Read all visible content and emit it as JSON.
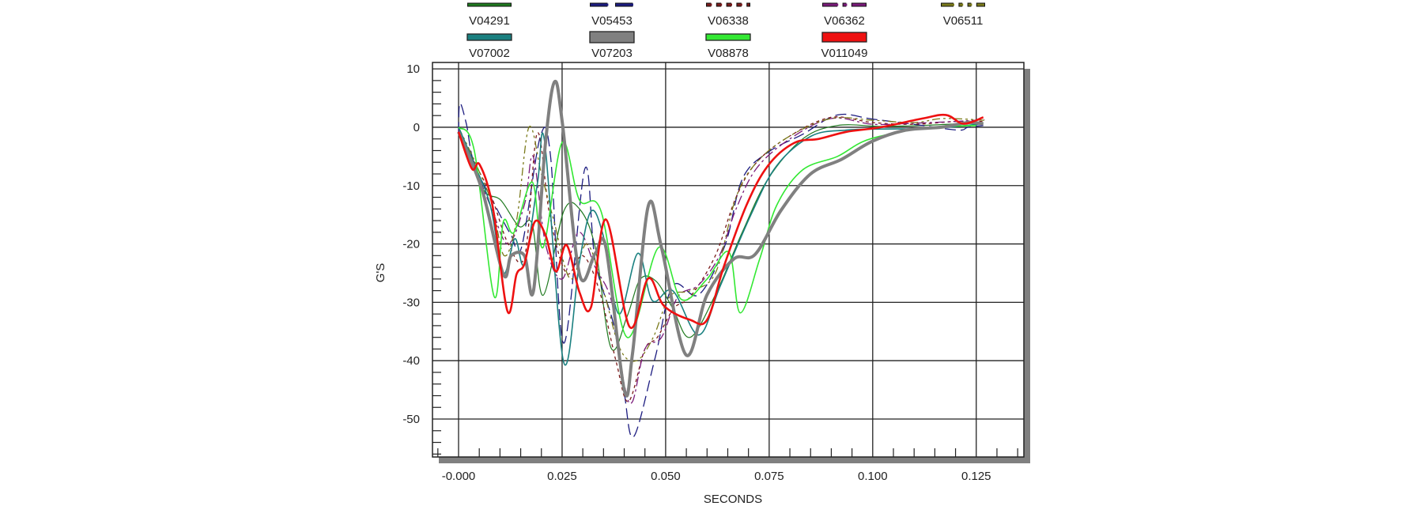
{
  "chart_data": {
    "type": "line",
    "title": "",
    "xlabel": "SECONDS",
    "ylabel": "G'S",
    "xlim": [
      -0.0063,
      0.1365
    ],
    "ylim": [
      -56.5,
      11.1
    ],
    "x_ticks": [
      0,
      0.025,
      0.05,
      0.075,
      0.1,
      0.125
    ],
    "x_tick_labels": [
      "-0.000",
      "0.025",
      "0.050",
      "0.075",
      "0.100",
      "0.125"
    ],
    "y_ticks": [
      10,
      0,
      -10,
      -20,
      -30,
      -40,
      -50
    ],
    "y_tick_labels": [
      "10",
      "0",
      "-10",
      "-20",
      "-30",
      "-40",
      "-50"
    ],
    "grid": true,
    "legend_position": "top",
    "series": [
      {
        "name": "V04291",
        "color": "#1f7a1f",
        "style": "solid-thin",
        "x": [
          0,
          0.0057,
          0.0102,
          0.0146,
          0.0178,
          0.0204,
          0.0254,
          0.0292,
          0.033,
          0.0368,
          0.0407,
          0.0439,
          0.0477,
          0.0517,
          0.0559,
          0.062,
          0.0685,
          0.0747,
          0.0831,
          0.0915,
          0.102,
          0.112,
          0.1267
        ],
        "y": [
          0,
          -10.4,
          -12.5,
          -17,
          -16.6,
          -28.8,
          -14.4,
          -14,
          -20.6,
          -37.8,
          -32.4,
          -26,
          -26.4,
          -31,
          -36,
          -28.7,
          -18,
          -8.9,
          -2,
          0.3,
          0.15,
          0.3,
          0.8
        ]
      },
      {
        "name": "V05453",
        "color": "#1c1c80",
        "style": "long-dash",
        "x": [
          0,
          0.0003,
          0.0019,
          0.0038,
          0.0089,
          0.0127,
          0.0152,
          0.0197,
          0.0222,
          0.0254,
          0.0305,
          0.033,
          0.0375,
          0.04,
          0.0423,
          0.0475,
          0.0517,
          0.058,
          0.0643,
          0.0685,
          0.0747,
          0.0831,
          0.0915,
          0.0999,
          0.112,
          0.1208,
          0.123,
          0.1267
        ],
        "y": [
          -1,
          4.1,
          0.5,
          -6.3,
          -13.5,
          -18.5,
          -20.6,
          -1.7,
          -4.9,
          -37,
          -7.1,
          -23,
          -34,
          -45.5,
          -53,
          -39.4,
          -27.2,
          -28.7,
          -20.3,
          -8.9,
          -4.3,
          -1.2,
          2.1,
          1.4,
          0.3,
          -0.5,
          0,
          0.3
        ]
      },
      {
        "name": "V06338",
        "color": "#7a1a1a",
        "style": "short-dash",
        "x": [
          0,
          0.0038,
          0.008,
          0.012,
          0.016,
          0.019,
          0.022,
          0.026,
          0.03,
          0.034,
          0.038,
          0.041,
          0.045,
          0.048,
          0.052,
          0.056,
          0.062,
          0.067,
          0.072,
          0.08,
          0.09,
          0.1,
          0.11,
          0.12,
          0.127
        ],
        "y": [
          -1,
          -6,
          -12,
          -20,
          -22,
          -1,
          -15,
          -25,
          -22,
          -28,
          -40,
          -47,
          -38,
          -36,
          -31,
          -29,
          -22,
          -12,
          -6,
          -1.5,
          1.7,
          0.8,
          0.5,
          1.0,
          1.0
        ]
      },
      {
        "name": "V06362",
        "color": "#7a1a7a",
        "style": "dash-dot",
        "x": [
          0,
          0.004,
          0.008,
          0.012,
          0.016,
          0.018,
          0.021,
          0.025,
          0.029,
          0.033,
          0.037,
          0.04,
          0.042,
          0.045,
          0.049,
          0.053,
          0.058,
          0.063,
          0.067,
          0.072,
          0.08,
          0.09,
          0.1,
          0.11,
          0.12,
          0.127
        ],
        "y": [
          -0.5,
          -7,
          -14,
          -20,
          -13,
          -5,
          -20,
          -26,
          -18,
          -24,
          -30,
          -44,
          -47,
          -38,
          -36,
          -29,
          -27,
          -22,
          -14,
          -7,
          -2,
          1.5,
          0.5,
          0.7,
          1,
          1.3
        ]
      },
      {
        "name": "V06511",
        "color": "#7a7a1a",
        "style": "dash-dot-dot",
        "x": [
          0,
          0.004,
          0.008,
          0.011,
          0.014,
          0.017,
          0.02,
          0.023,
          0.027,
          0.031,
          0.035,
          0.039,
          0.043,
          0.047,
          0.051,
          0.056,
          0.062,
          0.067,
          0.072,
          0.08,
          0.09,
          0.1,
          0.11,
          0.117,
          0.127
        ],
        "y": [
          0,
          -6,
          -13,
          -22,
          -16,
          0,
          -8,
          -16,
          -26,
          -20,
          -28,
          -38,
          -40,
          -36,
          -29,
          -28,
          -25,
          -12,
          -6,
          -1.5,
          1.5,
          1.2,
          0.8,
          1.5,
          1.2
        ]
      },
      {
        "name": "V07002",
        "color": "#1a8080",
        "style": "solid",
        "x": [
          0,
          0.0038,
          0.0077,
          0.0108,
          0.0136,
          0.0159,
          0.0191,
          0.0208,
          0.0254,
          0.0292,
          0.032,
          0.0349,
          0.0387,
          0.0433,
          0.0468,
          0.0517,
          0.058,
          0.0632,
          0.0706,
          0.0768,
          0.0852,
          0.0936,
          0.102,
          0.1145,
          0.1267
        ],
        "y": [
          0,
          -6.3,
          -13.5,
          -25,
          -19.1,
          -23.4,
          -9.4,
          -2.6,
          -40.3,
          -23,
          -14.4,
          -18.5,
          -32,
          -21.6,
          -29.7,
          -28,
          -35.6,
          -27.2,
          -15,
          -6.6,
          -1.5,
          -0.5,
          -0.3,
          -0.2,
          0.6
        ]
      },
      {
        "name": "V07203",
        "color": "#808080",
        "style": "solid-thick",
        "x": [
          0,
          0.0057,
          0.0108,
          0.0127,
          0.0159,
          0.0181,
          0.021,
          0.0232,
          0.0251,
          0.0292,
          0.033,
          0.0356,
          0.04,
          0.042,
          0.0458,
          0.049,
          0.0549,
          0.06,
          0.0664,
          0.0716,
          0.0779,
          0.085,
          0.0925,
          0.0999,
          0.108,
          0.1166,
          0.1229,
          0.1267
        ],
        "y": [
          -0.8,
          -10.8,
          -25.2,
          -22,
          -22,
          -28,
          -2.6,
          7.8,
          0.5,
          -25.2,
          -21.6,
          -20.7,
          -45,
          -38.8,
          -13.5,
          -20.6,
          -39,
          -28.7,
          -22.6,
          -21.8,
          -14.2,
          -8,
          -5.5,
          -2.4,
          -0.5,
          0,
          0.8,
          0.6
        ]
      },
      {
        "name": "V08878",
        "color": "#33e833",
        "style": "solid",
        "x": [
          0,
          0.0038,
          0.0086,
          0.0108,
          0.0134,
          0.0178,
          0.0204,
          0.025,
          0.0292,
          0.0344,
          0.0407,
          0.0483,
          0.0538,
          0.06,
          0.0653,
          0.068,
          0.0727,
          0.0768,
          0.0831,
          0.0915,
          0.0978,
          0.106,
          0.1145,
          0.125
        ],
        "y": [
          0,
          -4,
          -29,
          -16.2,
          -18,
          -9.4,
          -20.6,
          -2.6,
          -12.5,
          -14.4,
          -36,
          -20.6,
          -29.5,
          -26,
          -21.4,
          -31.8,
          -22.6,
          -13.4,
          -7.3,
          -5,
          -2.4,
          -0.9,
          0,
          0.3
        ]
      },
      {
        "name": "V011049",
        "color": "#ee1111",
        "style": "solid-medium",
        "x": [
          0,
          0.0032,
          0.0051,
          0.0082,
          0.0118,
          0.014,
          0.0159,
          0.0184,
          0.021,
          0.0235,
          0.0261,
          0.0292,
          0.032,
          0.0356,
          0.0413,
          0.0458,
          0.0496,
          0.0559,
          0.06,
          0.064,
          0.0695,
          0.0747,
          0.081,
          0.087,
          0.0936,
          0.102,
          0.112,
          0.1177,
          0.1219,
          0.1267
        ],
        "y": [
          -0.8,
          -7.1,
          -6.4,
          -13.5,
          -31.5,
          -25.2,
          -23.4,
          -16.2,
          -18.5,
          -24.7,
          -20.2,
          -28.3,
          -30.8,
          -15.8,
          -34.2,
          -25.9,
          -30.6,
          -33,
          -33,
          -24,
          -13.4,
          -6.6,
          -2.7,
          -2,
          -0.8,
          0,
          1.5,
          2.1,
          0.6,
          1.7
        ]
      }
    ]
  }
}
